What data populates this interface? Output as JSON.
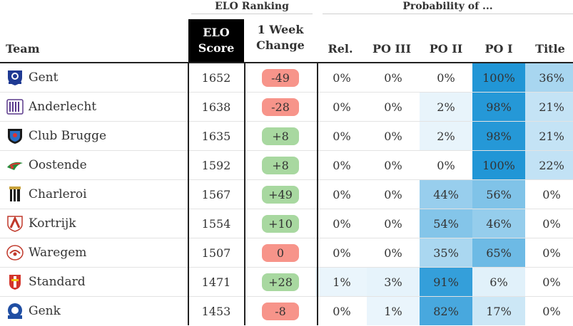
{
  "groups": {
    "elo": "ELO Ranking",
    "prob": "Probability of ..."
  },
  "headers": {
    "team": "Team",
    "elo_line1": "ELO",
    "elo_line2": "Score",
    "change_line1": "1 Week",
    "change_line2": "Change",
    "rel": "Rel.",
    "po3": "PO III",
    "po2": "PO II",
    "po1": "PO I",
    "title": "Title"
  },
  "colors": {
    "positive_pill": "#a8d8a0",
    "negative_pill": "#f7948a",
    "heat_high": "#2196d6",
    "heat_low": "#e9f4fb"
  },
  "rows": [
    {
      "team": "Gent",
      "logo": "kaa-gent-logo",
      "score": "1652",
      "change": "-49",
      "trend": "down",
      "rel": "0%",
      "po3": "0%",
      "po2": "0%",
      "po1": "100%",
      "title": "36%"
    },
    {
      "team": "Anderlecht",
      "logo": "anderlecht-logo",
      "score": "1638",
      "change": "-28",
      "trend": "down",
      "rel": "0%",
      "po3": "0%",
      "po2": "2%",
      "po1": "98%",
      "title": "21%"
    },
    {
      "team": "Club Brugge",
      "logo": "club-brugge-logo",
      "score": "1635",
      "change": "+8",
      "trend": "up",
      "rel": "0%",
      "po3": "0%",
      "po2": "2%",
      "po1": "98%",
      "title": "21%"
    },
    {
      "team": "Oostende",
      "logo": "oostende-logo",
      "score": "1592",
      "change": "+8",
      "trend": "up",
      "rel": "0%",
      "po3": "0%",
      "po2": "0%",
      "po1": "100%",
      "title": "22%"
    },
    {
      "team": "Charleroi",
      "logo": "charleroi-logo",
      "score": "1567",
      "change": "+49",
      "trend": "up",
      "rel": "0%",
      "po3": "0%",
      "po2": "44%",
      "po1": "56%",
      "title": "0%"
    },
    {
      "team": "Kortrijk",
      "logo": "kortrijk-logo",
      "score": "1554",
      "change": "+10",
      "trend": "up",
      "rel": "0%",
      "po3": "0%",
      "po2": "54%",
      "po1": "46%",
      "title": "0%"
    },
    {
      "team": "Waregem",
      "logo": "waregem-logo",
      "score": "1507",
      "change": "0",
      "trend": "down",
      "rel": "0%",
      "po3": "0%",
      "po2": "35%",
      "po1": "65%",
      "title": "0%"
    },
    {
      "team": "Standard",
      "logo": "standard-logo",
      "score": "1471",
      "change": "+28",
      "trend": "up",
      "rel": "1%",
      "po3": "3%",
      "po2": "91%",
      "po1": "6%",
      "title": "0%"
    },
    {
      "team": "Genk",
      "logo": "genk-logo",
      "score": "1453",
      "change": "-8",
      "trend": "down",
      "rel": "0%",
      "po3": "1%",
      "po2": "82%",
      "po1": "17%",
      "title": "0%"
    }
  ]
}
